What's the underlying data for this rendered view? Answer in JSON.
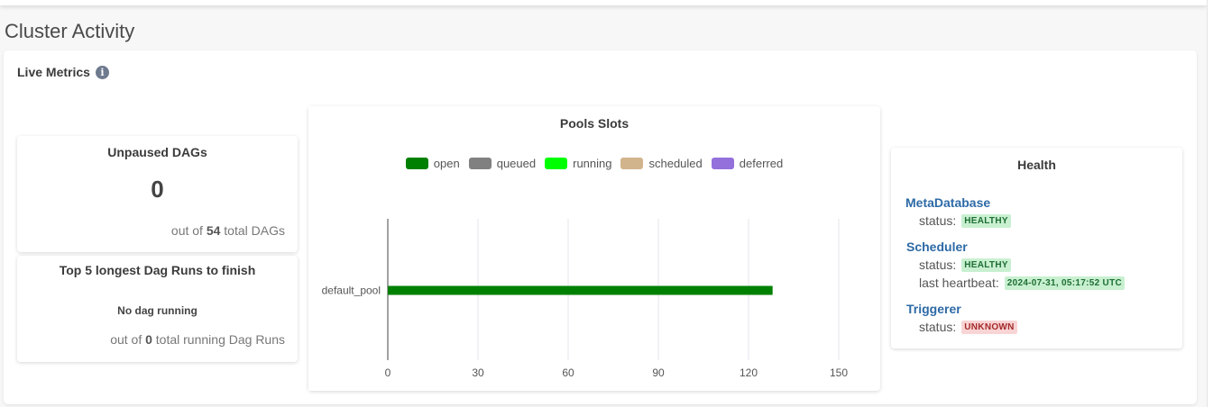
{
  "page": {
    "title": "Cluster Activity"
  },
  "live_metrics": {
    "title": "Live Metrics",
    "info_icon": "info-icon"
  },
  "unpaused": {
    "title": "Unpaused DAGs",
    "value": "0",
    "prefix": "out of",
    "total": "54",
    "suffix": "total DAGs"
  },
  "longest": {
    "title": "Top 5 longest Dag Runs to finish",
    "empty": "No dag running",
    "prefix": "out of",
    "total": "0",
    "suffix": "total running Dag Runs"
  },
  "chart_data": {
    "type": "bar",
    "title": "Pools Slots",
    "orientation": "horizontal",
    "stacked": true,
    "categories": [
      "default_pool"
    ],
    "series": [
      {
        "name": "open",
        "values": [
          128
        ],
        "color": "#008000"
      },
      {
        "name": "queued",
        "values": [
          0
        ],
        "color": "#808080"
      },
      {
        "name": "running",
        "values": [
          0
        ],
        "color": "#00ff00"
      },
      {
        "name": "scheduled",
        "values": [
          0
        ],
        "color": "#d2b48c"
      },
      {
        "name": "deferred",
        "values": [
          0
        ],
        "color": "#9370db"
      }
    ],
    "xticks": [
      "0",
      "30",
      "60",
      "90",
      "120",
      "150"
    ],
    "xlim": [
      0,
      150
    ],
    "grid": true,
    "legend": "top"
  },
  "health": {
    "title": "Health",
    "metadb": {
      "name": "MetaDatabase",
      "status_label": "status:",
      "status": "HEALTHY"
    },
    "scheduler": {
      "name": "Scheduler",
      "status_label": "status:",
      "status": "HEALTHY",
      "hb_label": "last heartbeat:",
      "hb": "2024-07-31, 05:17:52 UTC"
    },
    "triggerer": {
      "name": "Triggerer",
      "status_label": "status:",
      "status": "UNKNOWN"
    }
  }
}
